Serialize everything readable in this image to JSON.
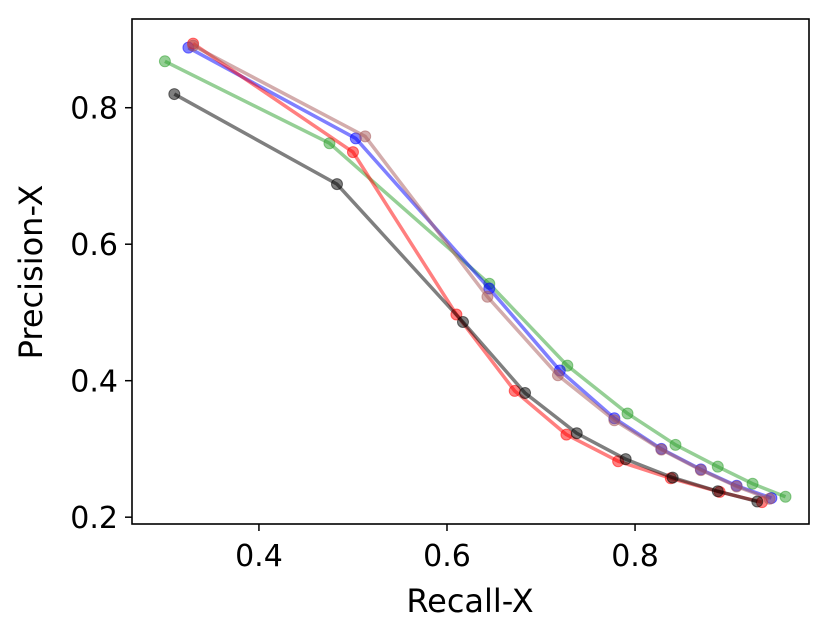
{
  "chart_data": {
    "type": "line",
    "xlabel": "Recall-X",
    "ylabel": "Precision-X",
    "xlim": [
      0.265,
      0.985
    ],
    "ylim": [
      0.19,
      0.93
    ],
    "xticks": [
      "0.4",
      "0.6",
      "0.8"
    ],
    "yticks": [
      "0.2",
      "0.4",
      "0.6",
      "0.8"
    ],
    "grid": false,
    "series": [
      {
        "color": "#2ca02c",
        "points": [
          [
            0.3,
            0.868
          ],
          [
            0.475,
            0.748
          ],
          [
            0.645,
            0.542
          ],
          [
            0.728,
            0.422
          ],
          [
            0.792,
            0.352
          ],
          [
            0.843,
            0.306
          ],
          [
            0.888,
            0.274
          ],
          [
            0.925,
            0.249
          ],
          [
            0.96,
            0.23
          ]
        ]
      },
      {
        "color": "#0000ff",
        "points": [
          [
            0.325,
            0.888
          ],
          [
            0.503,
            0.755
          ],
          [
            0.645,
            0.535
          ],
          [
            0.72,
            0.415
          ],
          [
            0.778,
            0.345
          ],
          [
            0.828,
            0.3
          ],
          [
            0.87,
            0.27
          ],
          [
            0.908,
            0.246
          ],
          [
            0.945,
            0.228
          ]
        ]
      },
      {
        "color": "#ff0000",
        "points": [
          [
            0.33,
            0.894
          ],
          [
            0.5,
            0.735
          ],
          [
            0.61,
            0.497
          ],
          [
            0.672,
            0.385
          ],
          [
            0.727,
            0.321
          ],
          [
            0.782,
            0.282
          ],
          [
            0.838,
            0.257
          ],
          [
            0.89,
            0.237
          ],
          [
            0.935,
            0.222
          ]
        ]
      },
      {
        "color": "#a85a5a",
        "points": [
          [
            0.33,
            0.891
          ],
          [
            0.513,
            0.758
          ],
          [
            0.643,
            0.523
          ],
          [
            0.718,
            0.408
          ],
          [
            0.778,
            0.342
          ],
          [
            0.828,
            0.299
          ],
          [
            0.87,
            0.269
          ],
          [
            0.908,
            0.245
          ],
          [
            0.943,
            0.227
          ]
        ]
      },
      {
        "color": "#000000",
        "points": [
          [
            0.31,
            0.82
          ],
          [
            0.483,
            0.688
          ],
          [
            0.617,
            0.486
          ],
          [
            0.683,
            0.382
          ],
          [
            0.738,
            0.323
          ],
          [
            0.79,
            0.285
          ],
          [
            0.84,
            0.258
          ],
          [
            0.888,
            0.238
          ],
          [
            0.93,
            0.223
          ]
        ]
      }
    ]
  }
}
